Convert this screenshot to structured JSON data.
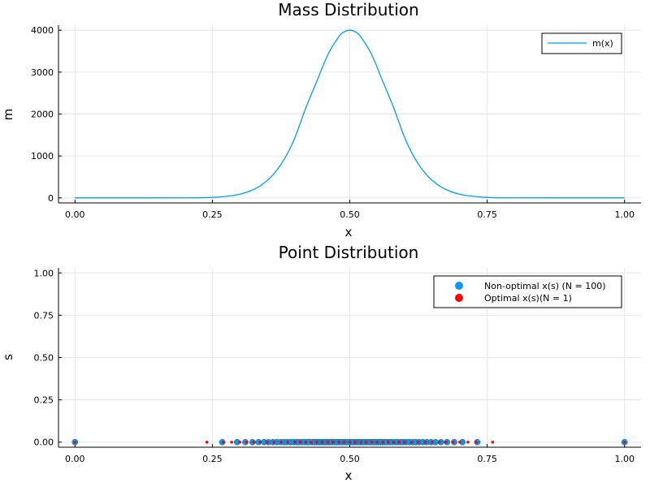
{
  "colors": {
    "mass_curve": "#009af9",
    "non_optimal": "#009af9",
    "optimal": "#ff0000",
    "grid": "#e6e6e6"
  },
  "chart_data": [
    {
      "type": "line",
      "title": "Mass Distribution",
      "xlabel": "x",
      "ylabel": "m",
      "xlim": [
        -0.03,
        1.03
      ],
      "ylim": [
        -120,
        4120
      ],
      "xticks": [
        0,
        0.25,
        0.5,
        0.75,
        1.0
      ],
      "xtick_labels": [
        "0.00",
        "0.25",
        "0.50",
        "0.75",
        "1.00"
      ],
      "yticks": [
        0,
        1000,
        2000,
        3000,
        4000
      ],
      "ytick_labels": [
        "0",
        "1000",
        "2000",
        "3000",
        "4000"
      ],
      "grid": true,
      "legend_position": "top-right",
      "series": [
        {
          "name": "m(x)",
          "x": [
            0.0,
            0.2,
            0.25,
            0.28,
            0.3,
            0.32,
            0.34,
            0.36,
            0.38,
            0.4,
            0.42,
            0.44,
            0.46,
            0.48,
            0.49,
            0.5,
            0.51,
            0.52,
            0.54,
            0.56,
            0.58,
            0.6,
            0.62,
            0.64,
            0.66,
            0.68,
            0.7,
            0.72,
            0.75,
            0.8,
            1.0
          ],
          "y": [
            0,
            1,
            12,
            45,
            89,
            171,
            313,
            546,
            907,
            1432,
            2148,
            2779,
            3413,
            3845,
            3961,
            4000,
            3961,
            3845,
            3413,
            2779,
            2148,
            1432,
            907,
            546,
            313,
            171,
            89,
            45,
            12,
            1,
            0
          ]
        }
      ]
    },
    {
      "type": "scatter",
      "title": "Point Distribution",
      "xlabel": "x",
      "ylabel": "s",
      "xlim": [
        -0.03,
        1.03
      ],
      "ylim": [
        -0.03,
        1.03
      ],
      "xticks": [
        0,
        0.25,
        0.5,
        0.75,
        1.0
      ],
      "xtick_labels": [
        "0.00",
        "0.25",
        "0.50",
        "0.75",
        "1.00"
      ],
      "yticks": [
        0,
        0.25,
        0.5,
        0.75,
        1.0
      ],
      "ytick_labels": [
        "0.00",
        "0.25",
        "0.50",
        "0.75",
        "1.00"
      ],
      "grid": true,
      "legend_position": "top-right",
      "series": [
        {
          "name": "Non-optimal x(s) (N = 100)",
          "x": [
            0.0,
            0.268,
            0.295,
            0.31,
            0.323,
            0.334,
            0.344,
            0.352,
            0.36,
            0.367,
            0.374,
            0.38,
            0.386,
            0.392,
            0.398,
            0.403,
            0.408,
            0.413,
            0.418,
            0.423,
            0.427,
            0.432,
            0.436,
            0.44,
            0.444,
            0.448,
            0.452,
            0.456,
            0.46,
            0.464,
            0.468,
            0.472,
            0.476,
            0.48,
            0.484,
            0.488,
            0.492,
            0.496,
            0.5,
            0.504,
            0.508,
            0.512,
            0.516,
            0.52,
            0.524,
            0.528,
            0.532,
            0.536,
            0.54,
            0.544,
            0.548,
            0.552,
            0.556,
            0.56,
            0.564,
            0.568,
            0.573,
            0.577,
            0.582,
            0.587,
            0.592,
            0.597,
            0.602,
            0.608,
            0.614,
            0.62,
            0.626,
            0.633,
            0.64,
            0.648,
            0.656,
            0.666,
            0.677,
            0.69,
            0.705,
            0.732,
            1.0
          ],
          "y": [
            0,
            0,
            0,
            0,
            0,
            0,
            0,
            0,
            0,
            0,
            0,
            0,
            0,
            0,
            0,
            0,
            0,
            0,
            0,
            0,
            0,
            0,
            0,
            0,
            0,
            0,
            0,
            0,
            0,
            0,
            0,
            0,
            0,
            0,
            0,
            0,
            0,
            0,
            0,
            0,
            0,
            0,
            0,
            0,
            0,
            0,
            0,
            0,
            0,
            0,
            0,
            0,
            0,
            0,
            0,
            0,
            0,
            0,
            0,
            0,
            0,
            0,
            0,
            0,
            0,
            0,
            0,
            0,
            0,
            0,
            0,
            0,
            0,
            0,
            0,
            0,
            0
          ]
        },
        {
          "name": "Optimal x(s)(N = 1)",
          "x": [
            0.0,
            0.24,
            0.27,
            0.285,
            0.3,
            0.312,
            0.325,
            0.337,
            0.35,
            0.362,
            0.375,
            0.387,
            0.4,
            0.41,
            0.42,
            0.43,
            0.44,
            0.45,
            0.46,
            0.47,
            0.48,
            0.49,
            0.5,
            0.51,
            0.52,
            0.53,
            0.54,
            0.55,
            0.56,
            0.57,
            0.58,
            0.59,
            0.6,
            0.613,
            0.625,
            0.638,
            0.65,
            0.663,
            0.675,
            0.688,
            0.7,
            0.715,
            0.73,
            0.76,
            1.0
          ],
          "y": [
            0,
            0,
            0,
            0,
            0,
            0,
            0,
            0,
            0,
            0,
            0,
            0,
            0,
            0,
            0,
            0,
            0,
            0,
            0,
            0,
            0,
            0,
            0,
            0,
            0,
            0,
            0,
            0,
            0,
            0,
            0,
            0,
            0,
            0,
            0,
            0,
            0,
            0,
            0,
            0,
            0,
            0,
            0,
            0,
            0
          ]
        }
      ]
    }
  ]
}
